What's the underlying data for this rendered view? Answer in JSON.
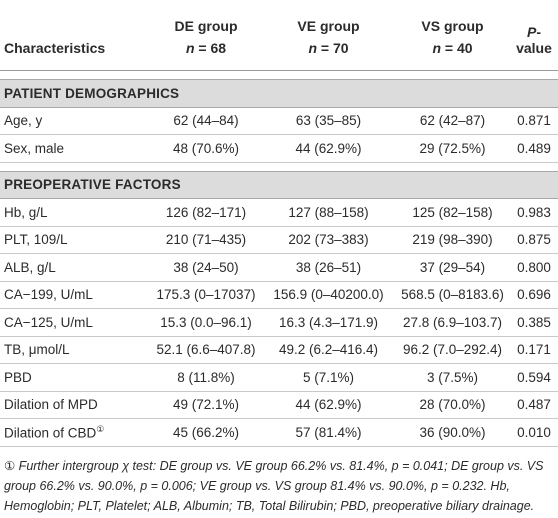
{
  "table": {
    "header": [
      {
        "text": "Characteristics"
      },
      {
        "group": "DE group",
        "n_symbol": "n",
        "n_value": "= 68"
      },
      {
        "group": "VE group",
        "n_symbol": "n",
        "n_value": "= 70"
      },
      {
        "group": "VS group",
        "n_symbol": "n",
        "n_value": "= 40"
      },
      {
        "p_symbol": "P",
        "p_rest": "-value"
      }
    ],
    "sections": [
      {
        "title": "PATIENT DEMOGRAPHICS",
        "rows": [
          {
            "cells": [
              "Age, y",
              "62 (44–84)",
              "63 (35–85)",
              "62 (42–87)",
              "0.871"
            ]
          },
          {
            "cells": [
              "Sex, male",
              "48 (70.6%)",
              "44 (62.9%)",
              "29 (72.5%)",
              "0.489"
            ]
          }
        ]
      },
      {
        "title": "PREOPERATIVE FACTORS",
        "rows": [
          {
            "cells": [
              "Hb, g/L",
              "126 (82–171)",
              "127 (88–158)",
              "125 (82–158)",
              "0.983"
            ]
          },
          {
            "cells": [
              "PLT, 109/L",
              "210 (71–435)",
              "202 (73–383)",
              "219 (98–390)",
              "0.875"
            ]
          },
          {
            "cells": [
              "ALB, g/L",
              "38 (24–50)",
              "38 (26–51)",
              "37 (29–54)",
              "0.800"
            ]
          },
          {
            "cells": [
              "CA−199, U/mL",
              "175.3 (0–17037)",
              "156.9 (0–40200.0)",
              "568.5 (0–8183.6)",
              "0.696"
            ]
          },
          {
            "cells": [
              "CA−125, U/mL",
              "15.3 (0.0–96.1)",
              "16.3 (4.3–171.9)",
              "27.8 (6.9–103.7)",
              "0.385"
            ]
          },
          {
            "cells": [
              "TB, μmol/L",
              "52.1 (6.6–407.8)",
              "49.2 (6.2–416.4)",
              "96.2 (7.0–292.4)",
              "0.171"
            ]
          },
          {
            "cells": [
              "PBD",
              "8 (11.8%)",
              "5 (7.1%)",
              "3 (7.5%)",
              "0.594"
            ]
          },
          {
            "cells": [
              "Dilation of MPD",
              "49 (72.1%)",
              "44 (62.9%)",
              "28 (70.0%)",
              "0.487"
            ]
          },
          {
            "cells": [
              "Dilation of CBD",
              "45 (66.2%)",
              "57 (81.4%)",
              "36 (90.0%)",
              "0.010"
            ],
            "note_mark": "①"
          }
        ]
      }
    ],
    "footnote": "① Further intergroup χ test: DE group vs. VE group 66.2% vs. 81.4%, p = 0.041; DE group vs. VS group 66.2% vs. 90.0%, p = 0.006; VE group vs. VS group 81.4% vs. 90.0%, p = 0.232. Hb, Hemoglobin; PLT, Platelet; ALB, Albumin; TB, Total Bilirubin; PBD, preoperative biliary drainage."
  }
}
